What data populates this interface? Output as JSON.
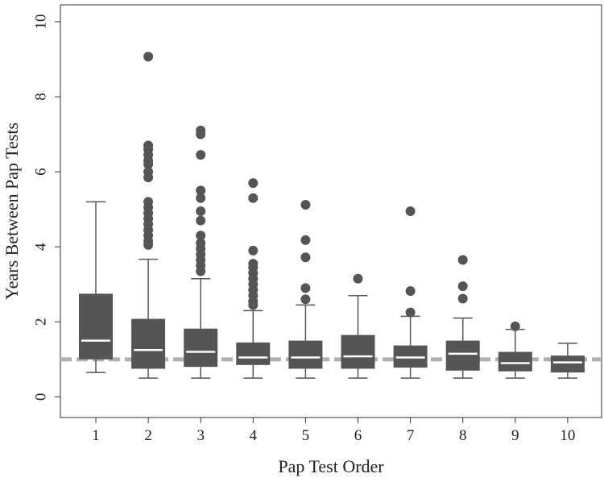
{
  "chart_data": {
    "type": "boxplot",
    "xlabel": "Pap Test Order",
    "ylabel": "Years Between Pap Tests",
    "categories": [
      "1",
      "2",
      "3",
      "4",
      "5",
      "6",
      "7",
      "8",
      "9",
      "10"
    ],
    "yticks": [
      "0",
      "2",
      "4",
      "6",
      "8",
      "10"
    ],
    "ylim": [
      -0.55,
      10.45
    ],
    "reference_line": 1.0,
    "boxes": [
      {
        "category": "1",
        "whisker_low": 0.65,
        "q1": 1.0,
        "median": 1.5,
        "q3": 2.75,
        "whisker_high": 5.2,
        "outliers": []
      },
      {
        "category": "2",
        "whisker_low": 0.5,
        "q1": 0.75,
        "median": 1.25,
        "q3": 2.08,
        "whisker_high": 3.67,
        "outliers": [
          4.05,
          4.15,
          4.3,
          4.45,
          4.6,
          4.75,
          4.9,
          5.05,
          5.2,
          5.85,
          6.0,
          6.2,
          6.3,
          6.45,
          6.6,
          6.7,
          9.07
        ]
      },
      {
        "category": "3",
        "whisker_low": 0.5,
        "q1": 0.8,
        "median": 1.2,
        "q3": 1.82,
        "whisker_high": 3.15,
        "outliers": [
          3.35,
          3.5,
          3.65,
          3.8,
          3.95,
          4.1,
          4.3,
          4.7,
          4.95,
          5.3,
          5.5,
          6.45,
          7.0,
          7.1
        ]
      },
      {
        "category": "4",
        "whisker_low": 0.5,
        "q1": 0.85,
        "median": 1.05,
        "q3": 1.45,
        "whisker_high": 2.3,
        "outliers": [
          2.45,
          2.55,
          2.7,
          2.85,
          3.0,
          3.15,
          3.3,
          3.45,
          3.55,
          3.9,
          5.3,
          5.7
        ]
      },
      {
        "category": "5",
        "whisker_low": 0.5,
        "q1": 0.75,
        "median": 1.05,
        "q3": 1.5,
        "whisker_high": 2.45,
        "outliers": [
          2.6,
          2.9,
          3.72,
          4.18,
          5.12
        ]
      },
      {
        "category": "6",
        "whisker_low": 0.5,
        "q1": 0.75,
        "median": 1.08,
        "q3": 1.65,
        "whisker_high": 2.7,
        "outliers": [
          3.15
        ]
      },
      {
        "category": "7",
        "whisker_low": 0.5,
        "q1": 0.78,
        "median": 1.05,
        "q3": 1.37,
        "whisker_high": 2.15,
        "outliers": [
          2.25,
          2.82,
          4.95
        ]
      },
      {
        "category": "8",
        "whisker_low": 0.5,
        "q1": 0.7,
        "median": 1.15,
        "q3": 1.5,
        "whisker_high": 2.1,
        "outliers": [
          2.62,
          2.95,
          3.65
        ]
      },
      {
        "category": "9",
        "whisker_low": 0.5,
        "q1": 0.68,
        "median": 0.9,
        "q3": 1.2,
        "whisker_high": 1.8,
        "outliers": [
          1.88
        ]
      },
      {
        "category": "10",
        "whisker_low": 0.5,
        "q1": 0.65,
        "median": 0.92,
        "q3": 1.1,
        "whisker_high": 1.43,
        "outliers": []
      }
    ],
    "colors": {
      "box": "#555555",
      "median": "#ffffff",
      "whisker": "#555555",
      "outlier": "#555555",
      "reference_line": "#b0b0b0",
      "frame": "#333333"
    },
    "grid": false,
    "legend": "none"
  }
}
